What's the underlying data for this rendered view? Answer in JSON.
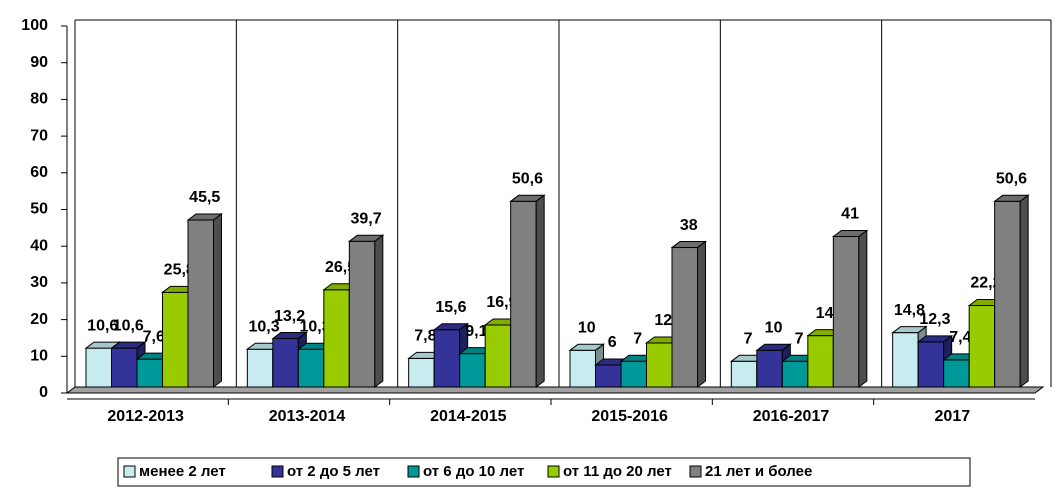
{
  "chart_data": {
    "type": "bar3d",
    "categories": [
      "2012-2013",
      "2013-2014",
      "2014-2015",
      "2015-2016",
      "2016-2017",
      "2017"
    ],
    "series": [
      {
        "name": "менее 2 лет",
        "color": "#c6ecf0",
        "values": [
          10.6,
          10.3,
          7.8,
          10,
          7,
          14.8
        ],
        "value_labels": [
          "10,6",
          "10,3",
          "7,8",
          "10",
          "7",
          "14,8"
        ]
      },
      {
        "name": "от 2 до 5 лет",
        "color": "#333399",
        "values": [
          10.6,
          13.2,
          15.6,
          6,
          10,
          12.3
        ],
        "value_labels": [
          "10,6",
          "13,2",
          "15,6",
          "6",
          "10",
          "12,3"
        ]
      },
      {
        "name": "от 6 до 10 лет",
        "color": "#009999",
        "values": [
          7.6,
          10.3,
          9.1,
          7,
          7,
          7.4
        ],
        "value_labels": [
          "7,6",
          "10,3",
          "9,1",
          "7",
          "7",
          "7,4"
        ]
      },
      {
        "name": "от 11 до 20 лет",
        "color": "#99cc00",
        "values": [
          25.8,
          26.5,
          16.9,
          12,
          14,
          22.2
        ],
        "value_labels": [
          "25,8",
          "26,5",
          "16,9",
          "12",
          "14",
          "22,2"
        ]
      },
      {
        "name": "21 лет и более",
        "color": "#808080",
        "values": [
          45.5,
          39.7,
          50.6,
          38,
          41,
          50.6
        ],
        "value_labels": [
          "45,5",
          "39,7",
          "50,6",
          "38",
          "41",
          "50,6"
        ]
      }
    ],
    "ylim": [
      0,
      100
    ],
    "yticks": [
      0,
      10,
      20,
      30,
      40,
      50,
      60,
      70,
      80,
      90,
      100
    ]
  }
}
